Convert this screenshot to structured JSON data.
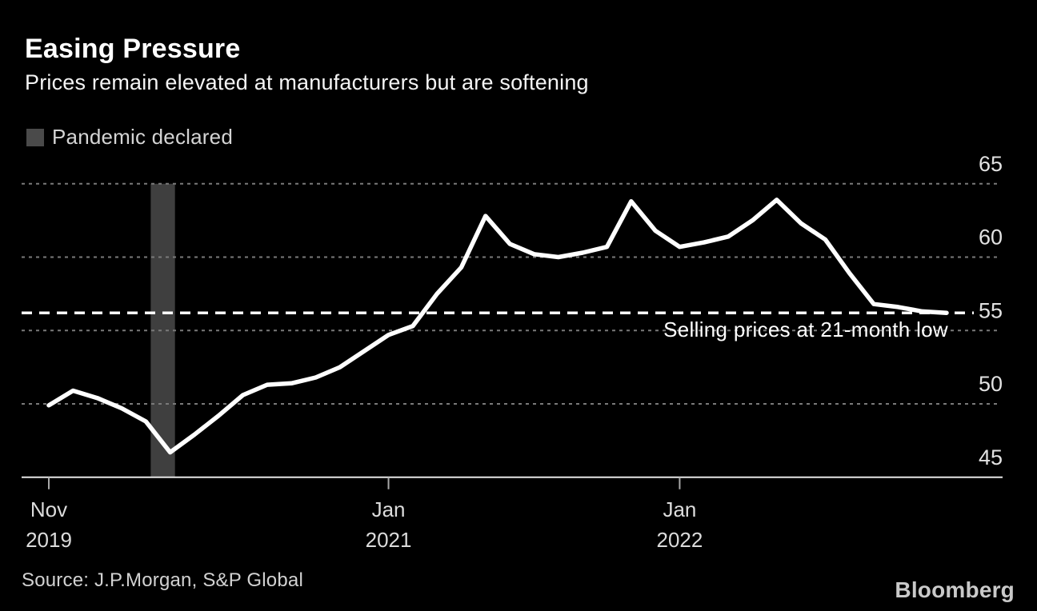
{
  "header": {
    "title": "Easing Pressure",
    "subtitle": "Prices remain elevated at manufacturers but are softening"
  },
  "legend": {
    "label": "Pandemic declared"
  },
  "chart_data": {
    "type": "line",
    "title": "Easing Pressure",
    "subtitle": "Prices remain elevated at manufacturers but are softening",
    "x": [
      "Nov 2019",
      "Dec 2019",
      "Jan 2020",
      "Feb 2020",
      "Mar 2020",
      "Apr 2020",
      "May 2020",
      "Jun 2020",
      "Jul 2020",
      "Aug 2020",
      "Sep 2020",
      "Oct 2020",
      "Nov 2020",
      "Dec 2020",
      "Jan 2021",
      "Feb 2021",
      "Mar 2021",
      "Apr 2021",
      "May 2021",
      "Jun 2021",
      "Jul 2021",
      "Aug 2021",
      "Sep 2021",
      "Oct 2021",
      "Nov 2021",
      "Dec 2021",
      "Jan 2022",
      "Feb 2022",
      "Mar 2022",
      "Apr 2022",
      "May 2022",
      "Jun 2022",
      "Jul 2022",
      "Aug 2022",
      "Sep 2022",
      "Oct 2022",
      "Nov 2022",
      "Dec 2022"
    ],
    "values": [
      49.9,
      50.9,
      50.4,
      49.7,
      48.8,
      46.7,
      47.9,
      49.2,
      50.6,
      51.3,
      51.4,
      51.8,
      52.5,
      53.6,
      54.7,
      55.3,
      57.5,
      59.3,
      62.8,
      60.9,
      60.2,
      60.0,
      60.3,
      60.7,
      63.8,
      61.8,
      60.7,
      61.0,
      61.4,
      62.5,
      63.9,
      62.3,
      61.2,
      58.9,
      56.8,
      56.6,
      56.3,
      56.2
    ],
    "ylim": [
      45,
      65
    ],
    "y_ticks": [
      65,
      60,
      55,
      50,
      45
    ],
    "x_ticks": [
      {
        "month_index": 0,
        "line1": "Nov",
        "line2": "2019"
      },
      {
        "month_index": 14,
        "line1": "Jan",
        "line2": "2021"
      },
      {
        "month_index": 26,
        "line1": "Jan",
        "line2": "2022"
      }
    ],
    "pandemic_band": {
      "label": "Pandemic declared",
      "from_month_index": 4.2,
      "to_month_index": 5.2
    },
    "annotation": {
      "text": "Selling prices at 21-month low",
      "level": 56.2
    },
    "grid": "horizontal-dotted",
    "legend_position": "top-left",
    "ylabel": "",
    "xlabel": ""
  },
  "footer": {
    "source": "Source: J.P.Morgan, S&P Global",
    "brand": "Bloomberg"
  },
  "colors": {
    "background": "#000000",
    "line": "#ffffff",
    "band": "#3f3f3f",
    "grid": "#7a7a7a",
    "axis": "#e6e6e6",
    "annotation_line": "#ffffff",
    "muted_text": "#d4d4d4",
    "brand_text": "#c9c9c9"
  }
}
